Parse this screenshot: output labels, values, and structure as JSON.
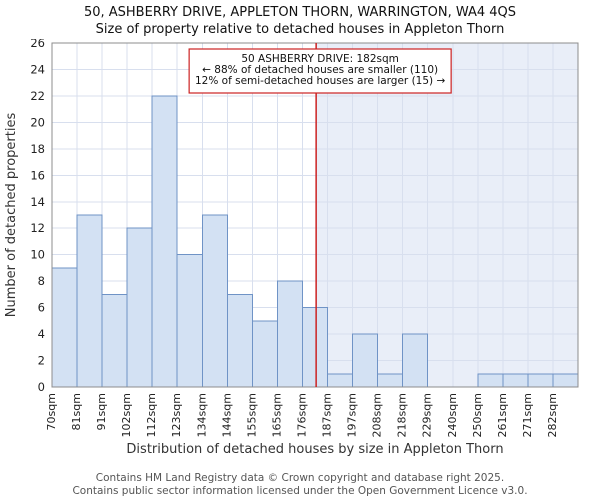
{
  "title": {
    "line1": "50, ASHBERRY DRIVE, APPLETON THORN, WARRINGTON, WA4 4QS",
    "line2": "Size of property relative to detached houses in Appleton Thorn"
  },
  "chart_data": {
    "type": "bar",
    "title": "50, ASHBERRY DRIVE, APPLETON THORN, WARRINGTON, WA4 4QS",
    "subtitle": "Size of property relative to detached houses in Appleton Thorn",
    "categories": [
      "70sqm",
      "81sqm",
      "91sqm",
      "102sqm",
      "112sqm",
      "123sqm",
      "134sqm",
      "144sqm",
      "155sqm",
      "165sqm",
      "176sqm",
      "187sqm",
      "197sqm",
      "208sqm",
      "218sqm",
      "229sqm",
      "240sqm",
      "250sqm",
      "261sqm",
      "271sqm",
      "282sqm"
    ],
    "bin_starts": [
      70,
      81,
      91,
      102,
      112,
      123,
      134,
      144,
      155,
      165,
      176,
      187,
      197,
      208,
      218,
      229,
      240,
      250,
      261,
      271,
      282
    ],
    "bin_end": 293,
    "values": [
      9,
      13,
      7,
      12,
      22,
      10,
      13,
      7,
      5,
      8,
      6,
      1,
      4,
      1,
      4,
      0,
      0,
      1,
      1,
      1,
      1
    ],
    "xlabel": "Distribution of detached houses by size in Appleton Thorn",
    "ylabel": "Number of detached properties",
    "ylim": [
      0,
      26
    ],
    "ytick_step": 2,
    "grid": true,
    "marker": {
      "value": 182
    },
    "annotation_lines": [
      "50 ASHBERRY DRIVE: 182sqm",
      "← 88% of detached houses are smaller (110)",
      "12% of semi-detached houses are larger (15) →"
    ],
    "colors": {
      "bar_fill": "#d3e1f3",
      "bar_stroke": "#6f93c6",
      "marker_line": "#cc2222",
      "grid": "#d8dfee",
      "shade": "#e9eef8",
      "axis": "#8c8c8c"
    }
  },
  "footer": {
    "line1": "Contains HM Land Registry data © Crown copyright and database right 2025.",
    "line2": "Contains public sector information licensed under the Open Government Licence v3.0."
  }
}
